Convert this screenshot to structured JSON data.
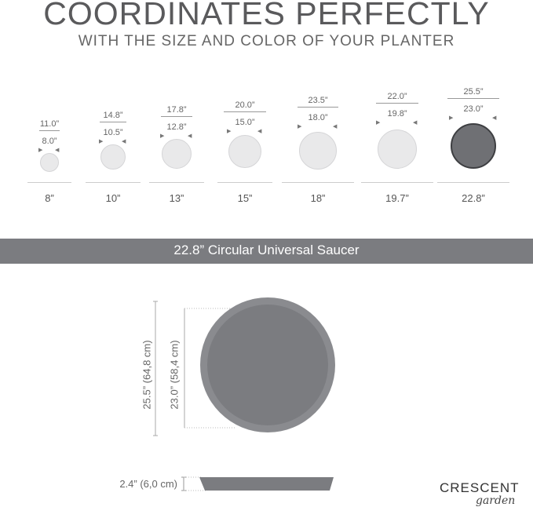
{
  "header": {
    "title": "COORDINATES PERFECTLY",
    "subtitle": "WITH THE SIZE AND COLOR OF YOUR PLANTER"
  },
  "size_lineup": [
    {
      "size": "8”",
      "outer": "11.0”",
      "inner": "8.0”",
      "selected": false
    },
    {
      "size": "10”",
      "outer": "14.8”",
      "inner": "10.5”",
      "selected": false
    },
    {
      "size": "13”",
      "outer": "17.8”",
      "inner": "12.8”",
      "selected": false
    },
    {
      "size": "15”",
      "outer": "20.0”",
      "inner": "15.0”",
      "selected": false
    },
    {
      "size": "18”",
      "outer": "23.5”",
      "inner": "18.0”",
      "selected": false
    },
    {
      "size": "19.7”",
      "outer": "22.0”",
      "inner": "19.8”",
      "selected": false
    },
    {
      "size": "22.8”",
      "outer": "25.5”",
      "inner": "23.0”",
      "selected": true
    }
  ],
  "product_banner": "22.8” Circular Universal Saucer",
  "detail": {
    "outer_dimension": "25.5” (64,8 cm)",
    "inner_dimension": "23.0” (58,4 cm)",
    "height_dimension": "2.4” (6,0 cm)"
  },
  "brand": {
    "name": "CRESCENT",
    "script": "garden"
  },
  "colors": {
    "saucer_gray": "#7b7c80",
    "saucer_rim": "#8a8b8f",
    "light_saucer": "#e9e9ea"
  }
}
